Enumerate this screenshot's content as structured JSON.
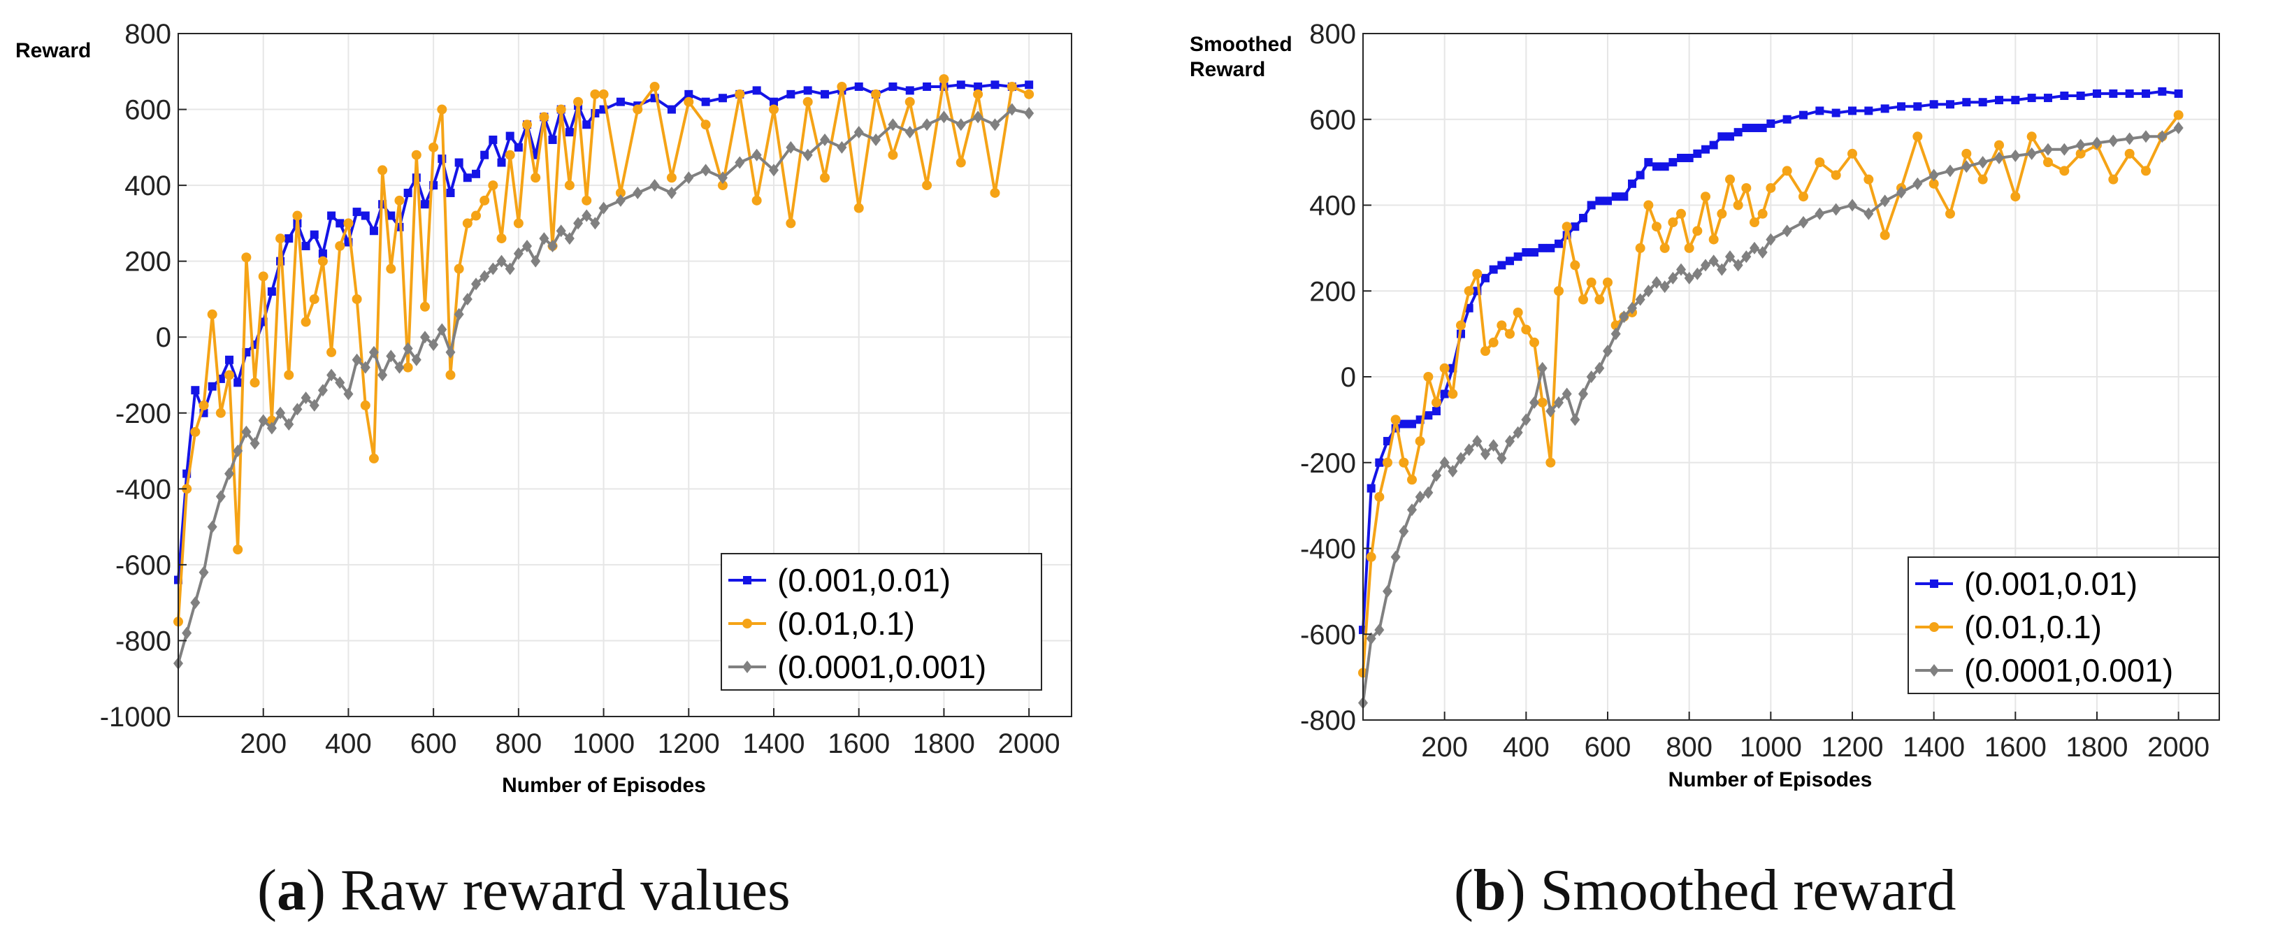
{
  "chart_data": [
    {
      "type": "line",
      "panel": "a",
      "caption_letter": "a",
      "caption_text": "Raw reward values",
      "ylabel": "Reward",
      "xlabel": "Number of Episodes",
      "xlim": [
        0,
        2100
      ],
      "ylim": [
        -1000,
        800
      ],
      "xticks": [
        "200",
        "400",
        "600",
        "800",
        "1000",
        "1200",
        "1400",
        "1600",
        "1800",
        "2000"
      ],
      "yticks": [
        "-1000",
        "-800",
        "-600",
        "-400",
        "-200",
        "0",
        "200",
        "400",
        "600",
        "800"
      ],
      "grid": true,
      "legend_position": "bottom-right",
      "series": [
        {
          "name": "(0.001,0.01)",
          "color": "#1414e6",
          "marker": "square",
          "x": [
            0,
            20,
            40,
            60,
            80,
            100,
            120,
            140,
            160,
            180,
            200,
            220,
            240,
            260,
            280,
            300,
            320,
            340,
            360,
            380,
            400,
            420,
            440,
            460,
            480,
            500,
            520,
            540,
            560,
            580,
            600,
            620,
            640,
            660,
            680,
            700,
            720,
            740,
            760,
            780,
            800,
            820,
            840,
            860,
            880,
            900,
            920,
            940,
            960,
            980,
            1000,
            1040,
            1080,
            1120,
            1160,
            1200,
            1240,
            1280,
            1320,
            1360,
            1400,
            1440,
            1480,
            1520,
            1560,
            1600,
            1640,
            1680,
            1720,
            1760,
            1800,
            1840,
            1880,
            1920,
            1960,
            2000
          ],
          "y": [
            -640,
            -360,
            -140,
            -200,
            -130,
            -110,
            -60,
            -120,
            -40,
            -20,
            40,
            120,
            200,
            260,
            300,
            240,
            270,
            220,
            320,
            300,
            250,
            330,
            320,
            280,
            350,
            320,
            290,
            380,
            420,
            350,
            400,
            470,
            380,
            460,
            420,
            430,
            480,
            520,
            460,
            530,
            500,
            560,
            480,
            580,
            520,
            600,
            540,
            610,
            560,
            590,
            600,
            620,
            610,
            630,
            600,
            640,
            620,
            630,
            640,
            650,
            620,
            640,
            650,
            640,
            650,
            660,
            640,
            660,
            650,
            660,
            660,
            665,
            660,
            665,
            660,
            665
          ]
        },
        {
          "name": "(0.01,0.1)",
          "color": "#f5a316",
          "marker": "circle",
          "x": [
            0,
            20,
            40,
            60,
            80,
            100,
            120,
            140,
            160,
            180,
            200,
            220,
            240,
            260,
            280,
            300,
            320,
            340,
            360,
            380,
            400,
            420,
            440,
            460,
            480,
            500,
            520,
            540,
            560,
            580,
            600,
            620,
            640,
            660,
            680,
            700,
            720,
            740,
            760,
            780,
            800,
            820,
            840,
            860,
            880,
            900,
            920,
            940,
            960,
            980,
            1000,
            1040,
            1080,
            1120,
            1160,
            1200,
            1240,
            1280,
            1320,
            1360,
            1400,
            1440,
            1480,
            1520,
            1560,
            1600,
            1640,
            1680,
            1720,
            1760,
            1800,
            1840,
            1880,
            1920,
            1960,
            2000
          ],
          "y": [
            -750,
            -400,
            -250,
            -180,
            60,
            -200,
            -100,
            -560,
            210,
            -120,
            160,
            -220,
            260,
            -100,
            320,
            40,
            100,
            200,
            -40,
            240,
            300,
            100,
            -180,
            -320,
            440,
            180,
            360,
            -80,
            480,
            80,
            500,
            600,
            -100,
            180,
            300,
            320,
            360,
            400,
            260,
            480,
            300,
            560,
            420,
            580,
            240,
            600,
            400,
            620,
            360,
            640,
            640,
            380,
            600,
            660,
            420,
            620,
            560,
            400,
            640,
            360,
            600,
            300,
            620,
            420,
            660,
            340,
            640,
            480,
            620,
            400,
            680,
            460,
            640,
            380,
            660,
            640
          ]
        },
        {
          "name": "(0.0001,0.001)",
          "color": "#808080",
          "marker": "diamond",
          "x": [
            0,
            20,
            40,
            60,
            80,
            100,
            120,
            140,
            160,
            180,
            200,
            220,
            240,
            260,
            280,
            300,
            320,
            340,
            360,
            380,
            400,
            420,
            440,
            460,
            480,
            500,
            520,
            540,
            560,
            580,
            600,
            620,
            640,
            660,
            680,
            700,
            720,
            740,
            760,
            780,
            800,
            820,
            840,
            860,
            880,
            900,
            920,
            940,
            960,
            980,
            1000,
            1040,
            1080,
            1120,
            1160,
            1200,
            1240,
            1280,
            1320,
            1360,
            1400,
            1440,
            1480,
            1520,
            1560,
            1600,
            1640,
            1680,
            1720,
            1760,
            1800,
            1840,
            1880,
            1920,
            1960,
            2000
          ],
          "y": [
            -860,
            -780,
            -700,
            -620,
            -500,
            -420,
            -360,
            -300,
            -250,
            -280,
            -220,
            -240,
            -200,
            -230,
            -190,
            -160,
            -180,
            -140,
            -100,
            -120,
            -150,
            -60,
            -80,
            -40,
            -100,
            -50,
            -80,
            -30,
            -60,
            0,
            -20,
            20,
            -40,
            60,
            100,
            140,
            160,
            180,
            200,
            180,
            220,
            240,
            200,
            260,
            240,
            280,
            260,
            300,
            320,
            300,
            340,
            360,
            380,
            400,
            380,
            420,
            440,
            420,
            460,
            480,
            440,
            500,
            480,
            520,
            500,
            540,
            520,
            560,
            540,
            560,
            580,
            560,
            580,
            560,
            600,
            590
          ]
        }
      ]
    },
    {
      "type": "line",
      "panel": "b",
      "caption_letter": "b",
      "caption_text": "Smoothed reward",
      "ylabel": "Smoothed Reward",
      "ylabel_lines": [
        "Smoothed",
        "Reward"
      ],
      "xlabel": "Number of Episodes",
      "xlim": [
        0,
        2100
      ],
      "ylim": [
        -800,
        800
      ],
      "xticks": [
        "200",
        "400",
        "600",
        "800",
        "1000",
        "1200",
        "1400",
        "1600",
        "1800",
        "2000"
      ],
      "yticks": [
        "-800",
        "-600",
        "-400",
        "-200",
        "0",
        "200",
        "400",
        "600",
        "800"
      ],
      "grid": true,
      "legend_position": "bottom-right",
      "series": [
        {
          "name": "(0.001,0.01)",
          "color": "#1414e6",
          "marker": "square",
          "x": [
            0,
            20,
            40,
            60,
            80,
            100,
            120,
            140,
            160,
            180,
            200,
            220,
            240,
            260,
            280,
            300,
            320,
            340,
            360,
            380,
            400,
            420,
            440,
            460,
            480,
            500,
            520,
            540,
            560,
            580,
            600,
            620,
            640,
            660,
            680,
            700,
            720,
            740,
            760,
            780,
            800,
            820,
            840,
            860,
            880,
            900,
            920,
            940,
            960,
            980,
            1000,
            1040,
            1080,
            1120,
            1160,
            1200,
            1240,
            1280,
            1320,
            1360,
            1400,
            1440,
            1480,
            1520,
            1560,
            1600,
            1640,
            1680,
            1720,
            1760,
            1800,
            1840,
            1880,
            1920,
            1960,
            2000
          ],
          "y": [
            -590,
            -260,
            -200,
            -150,
            -120,
            -110,
            -110,
            -100,
            -90,
            -80,
            -40,
            20,
            100,
            160,
            200,
            230,
            250,
            260,
            270,
            280,
            290,
            290,
            300,
            300,
            310,
            330,
            350,
            370,
            400,
            410,
            410,
            420,
            420,
            450,
            470,
            500,
            490,
            490,
            500,
            510,
            510,
            520,
            530,
            540,
            560,
            560,
            570,
            580,
            580,
            580,
            590,
            600,
            610,
            620,
            615,
            620,
            620,
            625,
            630,
            630,
            635,
            635,
            640,
            640,
            645,
            645,
            650,
            650,
            655,
            655,
            660,
            660,
            660,
            660,
            665,
            660
          ]
        },
        {
          "name": "(0.01,0.1)",
          "color": "#f5a316",
          "marker": "circle",
          "x": [
            0,
            20,
            40,
            60,
            80,
            100,
            120,
            140,
            160,
            180,
            200,
            220,
            240,
            260,
            280,
            300,
            320,
            340,
            360,
            380,
            400,
            420,
            440,
            460,
            480,
            500,
            520,
            540,
            560,
            580,
            600,
            620,
            640,
            660,
            680,
            700,
            720,
            740,
            760,
            780,
            800,
            820,
            840,
            860,
            880,
            900,
            920,
            940,
            960,
            980,
            1000,
            1040,
            1080,
            1120,
            1160,
            1200,
            1240,
            1280,
            1320,
            1360,
            1400,
            1440,
            1480,
            1520,
            1560,
            1600,
            1640,
            1680,
            1720,
            1760,
            1800,
            1840,
            1880,
            1920,
            1960,
            2000
          ],
          "y": [
            -690,
            -420,
            -280,
            -200,
            -100,
            -200,
            -240,
            -150,
            0,
            -60,
            20,
            -40,
            120,
            200,
            240,
            60,
            80,
            120,
            100,
            150,
            110,
            80,
            -60,
            -200,
            200,
            350,
            260,
            180,
            220,
            180,
            220,
            120,
            140,
            150,
            300,
            400,
            350,
            300,
            360,
            380,
            300,
            340,
            420,
            320,
            380,
            460,
            400,
            440,
            360,
            380,
            440,
            480,
            420,
            500,
            470,
            520,
            460,
            330,
            440,
            560,
            450,
            380,
            520,
            460,
            540,
            420,
            560,
            500,
            480,
            520,
            540,
            460,
            520,
            480,
            560,
            610
          ]
        },
        {
          "name": "(0.0001,0.001)",
          "color": "#808080",
          "marker": "diamond",
          "x": [
            0,
            20,
            40,
            60,
            80,
            100,
            120,
            140,
            160,
            180,
            200,
            220,
            240,
            260,
            280,
            300,
            320,
            340,
            360,
            380,
            400,
            420,
            440,
            460,
            480,
            500,
            520,
            540,
            560,
            580,
            600,
            620,
            640,
            660,
            680,
            700,
            720,
            740,
            760,
            780,
            800,
            820,
            840,
            860,
            880,
            900,
            920,
            940,
            960,
            980,
            1000,
            1040,
            1080,
            1120,
            1160,
            1200,
            1240,
            1280,
            1320,
            1360,
            1400,
            1440,
            1480,
            1520,
            1560,
            1600,
            1640,
            1680,
            1720,
            1760,
            1800,
            1840,
            1880,
            1920,
            1960,
            2000
          ],
          "y": [
            -760,
            -610,
            -590,
            -500,
            -420,
            -360,
            -310,
            -280,
            -270,
            -230,
            -200,
            -220,
            -190,
            -170,
            -150,
            -180,
            -160,
            -190,
            -150,
            -130,
            -100,
            -60,
            20,
            -80,
            -60,
            -40,
            -100,
            -40,
            0,
            20,
            60,
            100,
            140,
            160,
            180,
            200,
            220,
            210,
            230,
            250,
            230,
            240,
            260,
            270,
            250,
            280,
            260,
            280,
            300,
            290,
            320,
            340,
            360,
            380,
            390,
            400,
            380,
            410,
            430,
            450,
            470,
            480,
            490,
            500,
            510,
            515,
            520,
            530,
            530,
            540,
            545,
            550,
            555,
            560,
            560,
            580
          ]
        }
      ]
    }
  ]
}
